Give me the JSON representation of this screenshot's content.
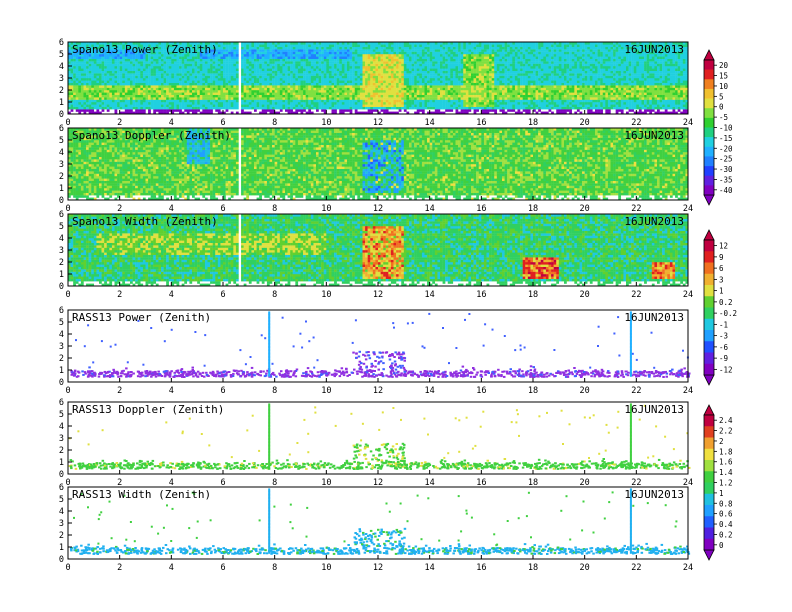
{
  "colors": {
    "palette_power": [
      "#ffffff",
      "#8000c0",
      "#6020e0",
      "#2040ff",
      "#2080ff",
      "#20b0ff",
      "#20d0e0",
      "#20d080",
      "#30d030",
      "#80e040",
      "#e0e040",
      "#f0c030",
      "#f08020",
      "#e02020",
      "#c00040"
    ],
    "palette_doppler": [
      "#ffffff",
      "#8000c0",
      "#5020e0",
      "#2060ff",
      "#20a0ff",
      "#20c0e0",
      "#30d060",
      "#40d040",
      "#a0e040",
      "#f0e040",
      "#f0a030",
      "#e04020",
      "#c00040"
    ],
    "palette_width": [
      "#ffffff",
      "#8000c0",
      "#6020e0",
      "#2050ff",
      "#20a0ff",
      "#20c8e0",
      "#30d060",
      "#60d030",
      "#e0e040",
      "#f0b030",
      "#f07020",
      "#e02020",
      "#c00040"
    ],
    "rass_power": "#9030e0",
    "rass_doppler_main": "#40d040",
    "rass_doppler_alt": "#e0e040",
    "rass_width_main": "#20b0f0",
    "rass_width_alt": "#40d040"
  },
  "chart_data": [
    {
      "type": "heatmap",
      "title": "Spano13 Power (Zenith)",
      "date": "16JUN2013",
      "x_ticks": [
        0,
        2,
        4,
        6,
        8,
        10,
        12,
        14,
        16,
        18,
        20,
        22,
        24
      ],
      "y_ticks": [
        0,
        1,
        2,
        3,
        4,
        5,
        6
      ],
      "xlim": [
        0,
        24
      ],
      "ylim": [
        0,
        6
      ],
      "colorbar_ticks": [
        "20",
        "15",
        "10",
        "5",
        "0",
        "-5",
        "-10",
        "-15",
        "-20",
        "-25",
        "-30",
        "-35",
        "-40"
      ],
      "description_levels": {
        "background": -20,
        "low_band_0_5_to_2_5km": -5,
        "active_11_5_to_13h": 0
      }
    },
    {
      "type": "heatmap",
      "title": "Spano13 Doppler (Zenith)",
      "date": "16JUN2013",
      "x_ticks": [
        0,
        2,
        4,
        6,
        8,
        10,
        12,
        14,
        16,
        18,
        20,
        22,
        24
      ],
      "y_ticks": [
        0,
        1,
        2,
        3,
        4,
        5,
        6
      ],
      "xlim": [
        0,
        24
      ],
      "ylim": [
        0,
        6
      ]
    },
    {
      "type": "heatmap",
      "title": "Spano13 Width (Zenith)",
      "date": "16JUN2013",
      "x_ticks": [
        0,
        2,
        4,
        6,
        8,
        10,
        12,
        14,
        16,
        18,
        20,
        22,
        24
      ],
      "y_ticks": [
        0,
        1,
        2,
        3,
        4,
        5,
        6
      ],
      "xlim": [
        0,
        24
      ],
      "ylim": [
        0,
        6
      ],
      "colorbar_ticks": [
        "12",
        "9",
        "6",
        "3",
        "1",
        "0.2",
        "-0.2",
        "-1",
        "-3",
        "-6",
        "-9",
        "-12"
      ]
    },
    {
      "type": "scatter",
      "title": "RASS13 Power (Zenith)",
      "date": "16JUN2013",
      "x_ticks": [
        0,
        2,
        4,
        6,
        8,
        10,
        12,
        14,
        16,
        18,
        20,
        22,
        24
      ],
      "y_ticks": [
        0,
        1,
        2,
        3,
        4,
        5,
        6
      ],
      "xlim": [
        0,
        24
      ],
      "ylim": [
        0,
        6
      ],
      "main_band_km": [
        0.5,
        1.0
      ],
      "vertical_spikes_h": [
        7.75,
        21.75
      ]
    },
    {
      "type": "scatter",
      "title": "RASS13 Doppler (Zenith)",
      "date": "16JUN2013",
      "x_ticks": [
        0,
        2,
        4,
        6,
        8,
        10,
        12,
        14,
        16,
        18,
        20,
        22,
        24
      ],
      "y_ticks": [
        0,
        1,
        2,
        3,
        4,
        5,
        6
      ],
      "xlim": [
        0,
        24
      ],
      "ylim": [
        0,
        6
      ],
      "main_band_km": [
        0.5,
        1.0
      ],
      "vertical_spikes_h": [
        7.75,
        21.75
      ],
      "colorbar_ticks": [
        "2.4",
        "2.2",
        "2",
        "1.8",
        "1.6",
        "1.4",
        "1.2",
        "1",
        "0.8",
        "0.6",
        "0.4",
        "0.2",
        "0"
      ]
    },
    {
      "type": "scatter",
      "title": "RASS13 Width (Zenith)",
      "date": "16JUN2013",
      "x_ticks": [
        0,
        2,
        4,
        6,
        8,
        10,
        12,
        14,
        16,
        18,
        20,
        22,
        24
      ],
      "y_ticks": [
        0,
        1,
        2,
        3,
        4,
        5,
        6
      ],
      "xlim": [
        0,
        24
      ],
      "ylim": [
        0,
        6
      ],
      "main_band_km": [
        0.5,
        1.0
      ],
      "vertical_spikes_h": [
        7.75,
        21.75
      ]
    }
  ]
}
